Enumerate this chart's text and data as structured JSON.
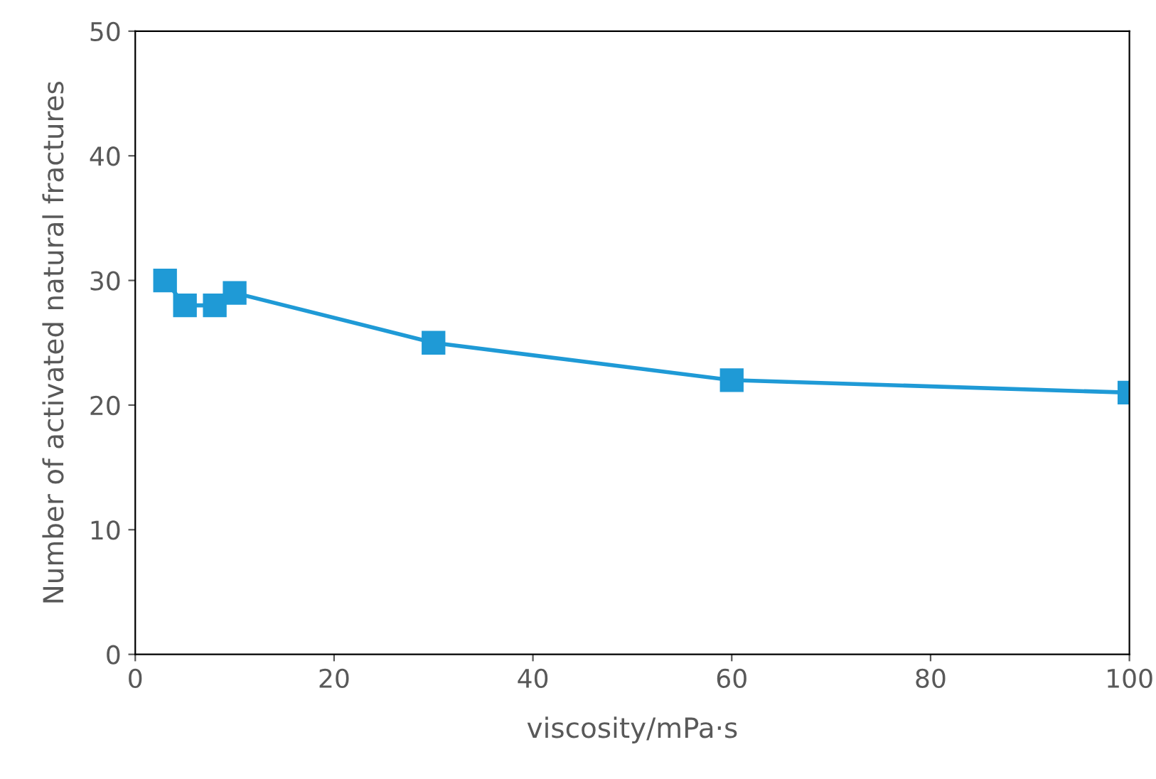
{
  "chart_data": {
    "type": "line",
    "xlabel": "viscosity/mPa·s",
    "ylabel": "Number of activated natural fractures",
    "x": [
      3,
      5,
      8,
      10,
      30,
      60,
      100
    ],
    "series": [
      {
        "color": "#1f9ad6",
        "values": [
          30,
          28,
          28,
          29,
          25,
          22,
          21
        ]
      }
    ],
    "marker": "square",
    "line_style": "solid",
    "grid": false,
    "legend": false,
    "xlim": [
      0,
      100
    ],
    "xticks": [
      0,
      20,
      40,
      60,
      80,
      100
    ],
    "ylim": [
      0,
      50
    ],
    "yticks": [
      0,
      10,
      20,
      30,
      40,
      50
    ]
  }
}
